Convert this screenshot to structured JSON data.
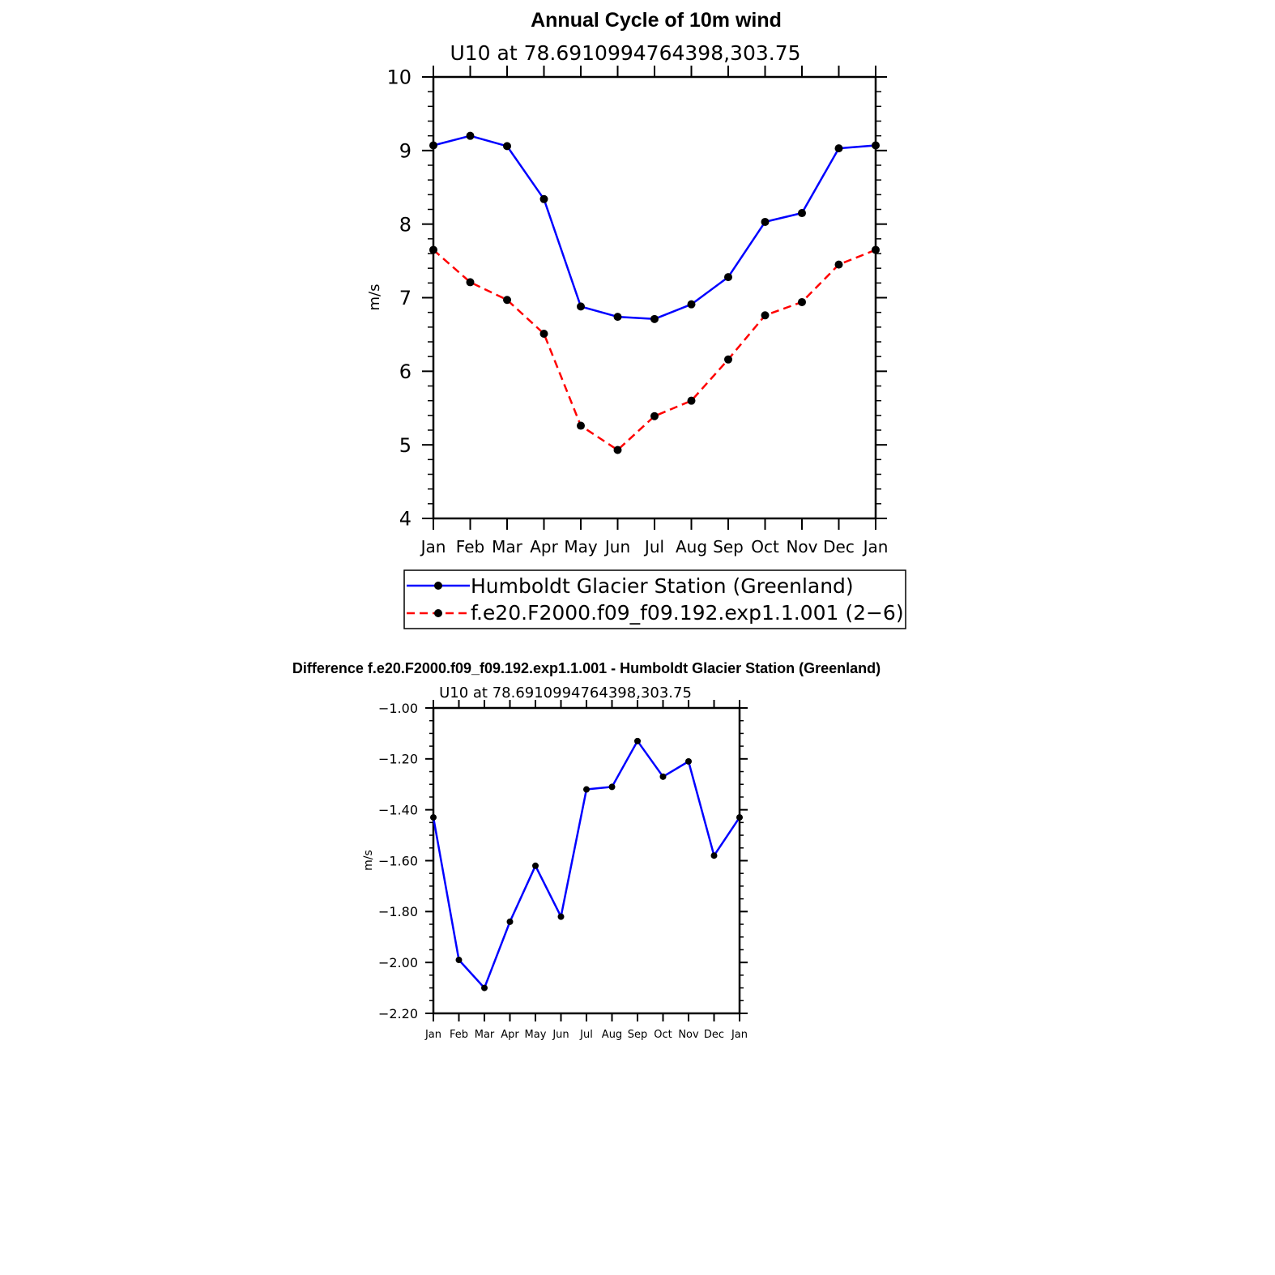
{
  "chart_data": [
    {
      "type": "line",
      "title": "Annual Cycle of 10m wind",
      "subtitle": "U10 at 78.6910994764398,303.75",
      "xlabel": "",
      "ylabel": "m/s",
      "ylim": [
        4,
        10
      ],
      "yticks": [
        4,
        5,
        6,
        7,
        8,
        9,
        10
      ],
      "yticklabels": [
        "4",
        "5",
        "6",
        "7",
        "8",
        "9",
        "10"
      ],
      "categories": [
        "Jan",
        "Feb",
        "Mar",
        "Apr",
        "May",
        "Jun",
        "Jul",
        "Aug",
        "Sep",
        "Oct",
        "Nov",
        "Dec",
        "Jan"
      ],
      "grid": false,
      "legend_position": "bottom",
      "series": [
        {
          "name": "Humboldt Glacier Station (Greenland)",
          "color": "#0000ff",
          "dashed": false,
          "values": [
            9.07,
            9.2,
            9.06,
            8.34,
            6.88,
            6.74,
            6.71,
            6.91,
            7.28,
            8.03,
            8.15,
            9.03,
            9.07
          ]
        },
        {
          "name": "f.e20.F2000.f09_f09.192.exp1.1.001 (2−6)",
          "color": "#ff0000",
          "dashed": true,
          "values": [
            7.65,
            7.21,
            6.97,
            6.51,
            5.26,
            4.93,
            5.39,
            5.6,
            6.16,
            6.76,
            6.94,
            7.45,
            7.65
          ]
        }
      ]
    },
    {
      "type": "line",
      "title": "Difference f.e20.F2000.f09_f09.192.exp1.1.001 - Humboldt Glacier Station (Greenland)",
      "subtitle": "U10 at 78.6910994764398,303.75",
      "xlabel": "",
      "ylabel": "m/s",
      "ylim": [
        -2.2,
        -1.0
      ],
      "yticks": [
        -2.2,
        -2.0,
        -1.8,
        -1.6,
        -1.4,
        -1.2,
        -1.0
      ],
      "yticklabels": [
        "−2.20",
        "−2.00",
        "−1.80",
        "−1.60",
        "−1.40",
        "−1.20",
        "−1.00"
      ],
      "categories": [
        "Jan",
        "Feb",
        "Mar",
        "Apr",
        "May",
        "Jun",
        "Jul",
        "Aug",
        "Sep",
        "Oct",
        "Nov",
        "Dec",
        "Jan"
      ],
      "grid": false,
      "series": [
        {
          "color": "#0000ff",
          "dashed": false,
          "values": [
            -1.43,
            -1.99,
            -2.1,
            -1.84,
            -1.62,
            -1.82,
            -1.32,
            -1.31,
            -1.13,
            -1.27,
            -1.21,
            -1.58,
            -1.43
          ]
        }
      ]
    }
  ]
}
